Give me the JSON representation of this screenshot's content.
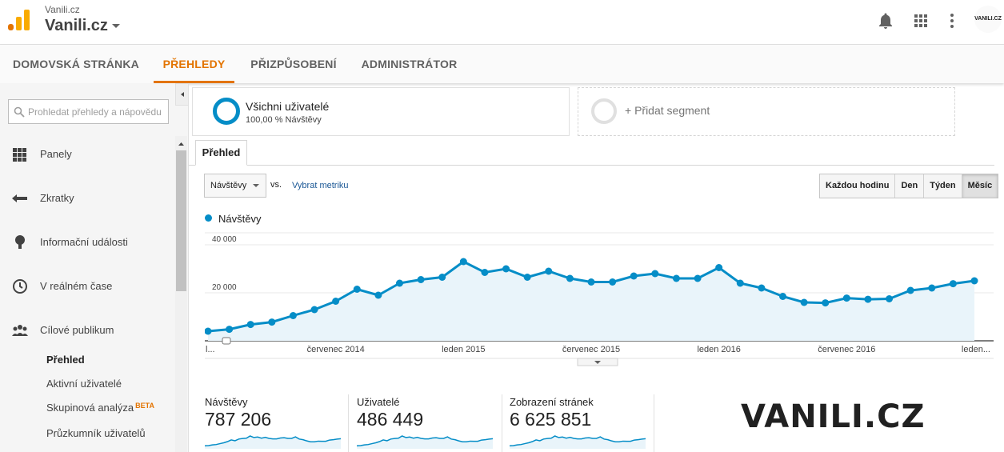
{
  "header": {
    "account_small": "Vanili.cz",
    "account_big": "Vanili.cz",
    "avatar_text": "VANILI.CZ"
  },
  "nav": {
    "tabs": [
      "DOMOVSKÁ STRÁNKA",
      "PŘEHLEDY",
      "PŘIZPŮSOBENÍ",
      "ADMINISTRÁTOR"
    ],
    "active_tab": "PŘEHLEDY"
  },
  "sidebar": {
    "search_placeholder": "Prohledat přehledy a nápovědu",
    "items": [
      "Panely",
      "Zkratky",
      "Informační události",
      "V reálném čase",
      "Cílové publikum"
    ],
    "subitems": [
      "Přehled",
      "Aktivní uživatelé",
      "Skupinová analýza",
      "Průzkumník uživatelů"
    ],
    "beta_label": "BETA"
  },
  "segments": {
    "seg1_title": "Všichni uživatelé",
    "seg1_sub": "100,00 % Návštěvy",
    "add_segment": "+ Přidat segment"
  },
  "tabs": {
    "overview": "Přehled"
  },
  "controls": {
    "metric": "Návštěvy",
    "vs": "vs.",
    "select_metric": "Vybrat metriku",
    "periods": [
      "Každou hodinu",
      "Den",
      "Týden",
      "Měsíc"
    ],
    "active_period": "Měsíc"
  },
  "colors": {
    "accent": "#e37400",
    "series": "#058dc7",
    "area": "#e9f4fa"
  },
  "chart_data": {
    "type": "line",
    "series": [
      {
        "name": "Návštěvy",
        "values": [
          4000,
          4800,
          6800,
          7800,
          10500,
          13000,
          16500,
          21500,
          19000,
          24000,
          25500,
          26500,
          33000,
          28500,
          30000,
          26500,
          29000,
          26000,
          24500,
          24500,
          27000,
          28000,
          26000,
          26000,
          30500,
          24000,
          22000,
          18500,
          16000,
          15800,
          17800,
          17300,
          17500,
          21000,
          22000,
          23800,
          25000
        ]
      }
    ],
    "ylim": [
      0,
      45000
    ],
    "yticks": [
      "20 000",
      "40 000"
    ],
    "ytick_values": [
      20000,
      40000
    ],
    "xticks": [
      "l...",
      "červenec 2014",
      "leden 2015",
      "červenec 2015",
      "leden 2016",
      "červenec 2016",
      "leden..."
    ],
    "xtick_indices": [
      0,
      6,
      12,
      18,
      24,
      30,
      36
    ],
    "grid": true
  },
  "stats": [
    {
      "name": "Návštěvy",
      "value": "787 206"
    },
    {
      "name": "Uživatelé",
      "value": "486 449"
    },
    {
      "name": "Zobrazení stránek",
      "value": "6 625 851"
    }
  ],
  "brand_text": "VANILI.CZ"
}
